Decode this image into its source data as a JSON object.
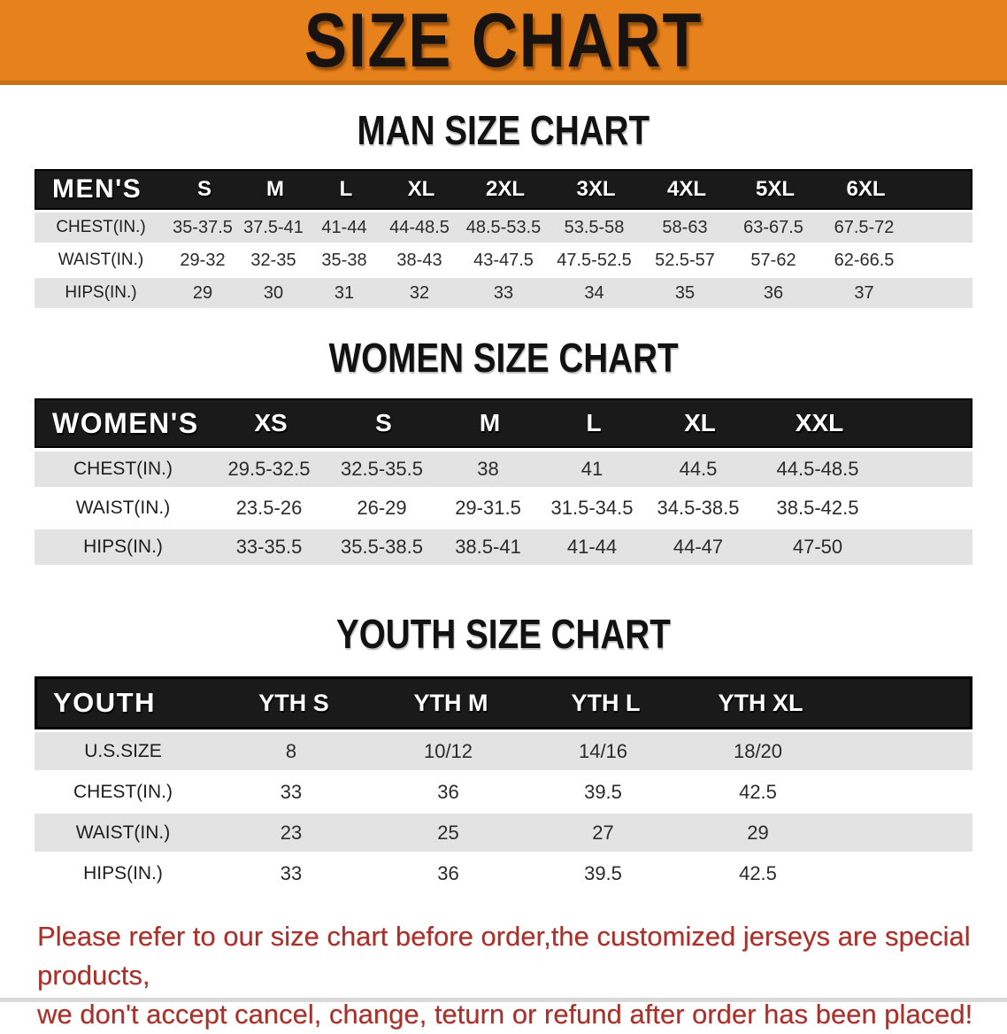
{
  "banner": {
    "title": "SIZE CHART"
  },
  "sections": [
    {
      "id": "men",
      "title": "MAN SIZE CHART",
      "table": {
        "label": "MEN'S",
        "columns": [
          "S",
          "M",
          "L",
          "XL",
          "2XL",
          "3XL",
          "4XL",
          "5XL",
          "6XL"
        ],
        "rows": [
          {
            "label": "CHEST(IN.)",
            "values": [
              "35-37.5",
              "37.5-41",
              "41-44",
              "44-48.5",
              "48.5-53.5",
              "53.5-58",
              "58-63",
              "63-67.5",
              "67.5-72"
            ]
          },
          {
            "label": "WAIST(IN.)",
            "values": [
              "29-32",
              "32-35",
              "35-38",
              "38-43",
              "43-47.5",
              "47.5-52.5",
              "52.5-57",
              "57-62",
              "62-66.5"
            ]
          },
          {
            "label": "HIPS(IN.)",
            "values": [
              "29",
              "30",
              "31",
              "32",
              "33",
              "34",
              "35",
              "36",
              "37"
            ]
          }
        ]
      }
    },
    {
      "id": "women",
      "title": "WOMEN SIZE CHART",
      "table": {
        "label": "WOMEN'S",
        "columns": [
          "XS",
          "S",
          "M",
          "L",
          "XL",
          "XXL"
        ],
        "rows": [
          {
            "label": "CHEST(IN.)",
            "values": [
              "29.5-32.5",
              "32.5-35.5",
              "38",
              "41",
              "44.5",
              "44.5-48.5"
            ]
          },
          {
            "label": "WAIST(IN.)",
            "values": [
              "23.5-26",
              "26-29",
              "29-31.5",
              "31.5-34.5",
              "34.5-38.5",
              "38.5-42.5"
            ]
          },
          {
            "label": "HIPS(IN.)",
            "values": [
              "33-35.5",
              "35.5-38.5",
              "38.5-41",
              "41-44",
              "44-47",
              "47-50"
            ]
          }
        ]
      }
    },
    {
      "id": "youth",
      "title": "YOUTH SIZE CHART",
      "table": {
        "label": "YOUTH",
        "columns": [
          "YTH S",
          "YTH M",
          "YTH L",
          "YTH XL"
        ],
        "rows": [
          {
            "label": "U.S.SIZE",
            "values": [
              "8",
              "10/12",
              "14/16",
              "18/20"
            ]
          },
          {
            "label": "CHEST(IN.)",
            "values": [
              "33",
              "36",
              "39.5",
              "42.5"
            ]
          },
          {
            "label": "WAIST(IN.)",
            "values": [
              "23",
              "25",
              "27",
              "29"
            ]
          },
          {
            "label": "HIPS(IN.)",
            "values": [
              "33",
              "36",
              "39.5",
              "42.5"
            ]
          }
        ]
      }
    }
  ],
  "footer": {
    "line1": "Please refer to our size chart before order,the customized jerseys are special products,",
    "line2": "we don't accept cancel, change, teturn or refund after order has been placed!"
  },
  "colors": {
    "banner_orange": "#E6811C",
    "banner_orange_dark": "#C96F15",
    "header_black": "#1A1A1A",
    "row_gray": "#E3E3E3",
    "footer_red": "#A8322B"
  }
}
